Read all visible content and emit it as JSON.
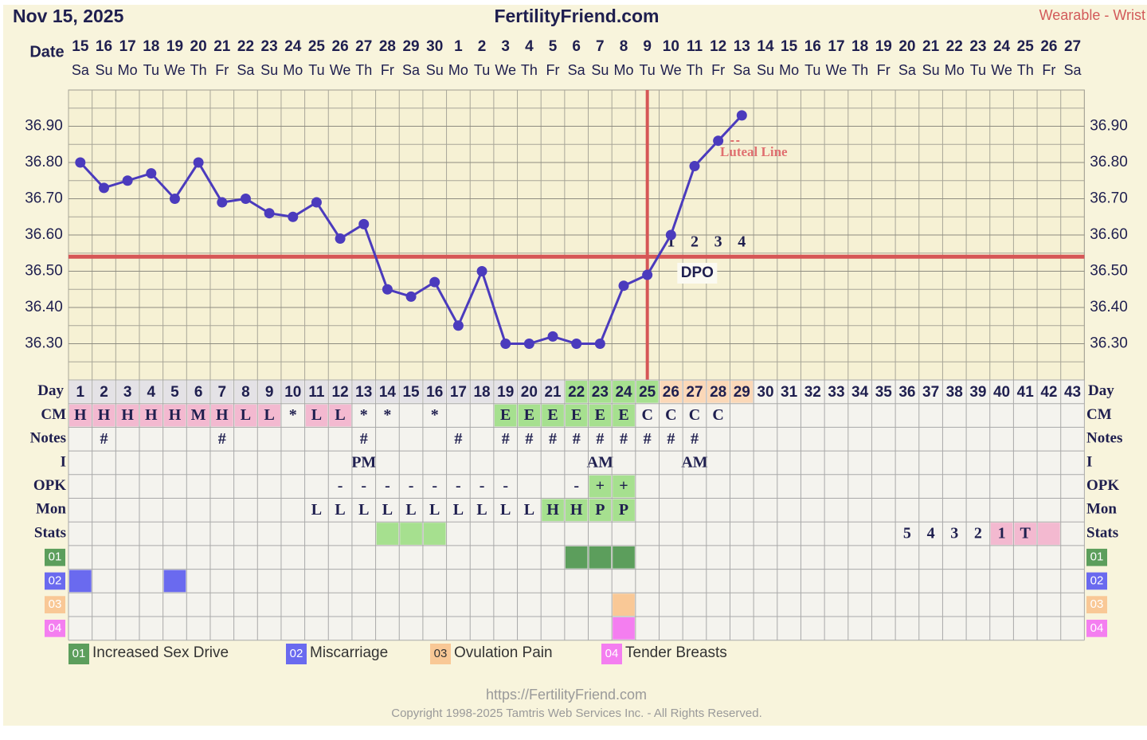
{
  "header": {
    "date": "Nov 15, 2025",
    "site": "FertilityFriend.com",
    "mode": "Wearable - Wrist"
  },
  "chart_data": {
    "type": "line",
    "x_label": "Date",
    "x": [
      15,
      16,
      17,
      18,
      19,
      20,
      21,
      22,
      23,
      24,
      25,
      26,
      27,
      28,
      29,
      30,
      1,
      2,
      3,
      4,
      5,
      6,
      7,
      8,
      9,
      10,
      11,
      12,
      13,
      14,
      15,
      16,
      17,
      18,
      19,
      20,
      21,
      22,
      23,
      24,
      25,
      26,
      27
    ],
    "weekdays": [
      "Sa",
      "Su",
      "Mo",
      "Tu",
      "We",
      "Th",
      "Fr",
      "Sa",
      "Su",
      "Mo",
      "Tu",
      "We",
      "Th",
      "Fr",
      "Sa",
      "Su",
      "Mo",
      "Tu",
      "We",
      "Th",
      "Fr",
      "Sa",
      "Su",
      "Mo",
      "Tu",
      "We",
      "Th",
      "Fr",
      "Sa",
      "Su",
      "Mo",
      "Tu",
      "We",
      "Th",
      "Fr",
      "Sa",
      "Su",
      "Mo",
      "Tu",
      "We",
      "Th",
      "Fr",
      "Sa"
    ],
    "series": [
      {
        "color": "#4b3bbd",
        "values": [
          36.8,
          36.73,
          36.75,
          36.77,
          36.7,
          36.8,
          36.69,
          36.7,
          36.66,
          36.65,
          36.69,
          36.59,
          36.63,
          36.45,
          36.43,
          36.47,
          36.35,
          36.5,
          36.3,
          36.3,
          36.32,
          36.3,
          36.3,
          36.46,
          36.49,
          36.6,
          36.79,
          36.86,
          36.93,
          null,
          null,
          null,
          null,
          null,
          null,
          null,
          null,
          null,
          null,
          null,
          null,
          null,
          null
        ]
      }
    ],
    "ylim": [
      36.2,
      37.0
    ],
    "yticks": [
      {
        "value": 36.3,
        "label": "36.30"
      },
      {
        "value": 36.4,
        "label": "36.40"
      },
      {
        "value": 36.5,
        "label": "36.50"
      },
      {
        "value": 36.6,
        "label": "36.60"
      },
      {
        "value": 36.7,
        "label": "36.70"
      },
      {
        "value": 36.8,
        "label": "36.80"
      },
      {
        "value": 36.9,
        "label": "36.90"
      }
    ],
    "grid": true,
    "coverline": 36.54,
    "coverline_color": "#d65656",
    "ovulation_day": 25,
    "dpo": [
      1,
      2,
      3,
      4
    ],
    "dpo_label": "DPO",
    "luteal_label": "Luteal Line"
  },
  "table": {
    "day_label": "Day",
    "days": [
      1,
      2,
      3,
      4,
      5,
      6,
      7,
      8,
      9,
      10,
      11,
      12,
      13,
      14,
      15,
      16,
      17,
      18,
      19,
      20,
      21,
      22,
      23,
      24,
      25,
      26,
      27,
      28,
      29,
      30,
      31,
      32,
      33,
      34,
      35,
      36,
      37,
      38,
      39,
      40,
      41,
      42,
      43
    ],
    "day_fills": [
      "#e4e2e6",
      "#e4e2e6",
      "#e4e2e6",
      "#e4e2e6",
      "#e4e2e6",
      "#e4e2e6",
      "#e4e2e6",
      "#e4e2e6",
      "#e4e2e6",
      "#e4e2e6",
      "#e4e2e6",
      "#e4e2e6",
      "#e4e2e6",
      "#e4e2e6",
      "#e4e2e6",
      "#e4e2e6",
      "#e4e2e6",
      "#e4e2e6",
      "#e4e2e6",
      "#e4e2e6",
      "#e4e2e6",
      "#a6e08f",
      "#a6e08f",
      "#a6e08f",
      "#a6e08f",
      "#fbd8b8",
      "#fbd8b8",
      "#fbd8b8",
      "#fbd8b8",
      null,
      null,
      null,
      null,
      null,
      null,
      null,
      null,
      null,
      null,
      null,
      null,
      null,
      null
    ],
    "rows": [
      {
        "label": "CM",
        "cells": [
          "H",
          "H",
          "H",
          "H",
          "H",
          "M",
          "H",
          "L",
          "L",
          "*",
          "L",
          "L",
          "*",
          "*",
          null,
          "*",
          null,
          null,
          "E",
          "E",
          "E",
          "E",
          "E",
          "E",
          "C",
          "C",
          "C",
          "C",
          null,
          null,
          null,
          null,
          null,
          null,
          null,
          null,
          null,
          null,
          null,
          null,
          null,
          null,
          null
        ],
        "fills": [
          "#f3b9d0",
          "#f3b9d0",
          "#f3b9d0",
          "#f3b9d0",
          "#f3b9d0",
          "#f3b9d0",
          "#f3b9d0",
          "#f3b9d0",
          "#f3b9d0",
          null,
          "#f3b9d0",
          "#f3b9d0",
          null,
          null,
          null,
          null,
          null,
          null,
          "#a6e08f",
          "#a6e08f",
          "#a6e08f",
          "#a6e08f",
          "#a6e08f",
          "#a6e08f",
          null,
          null,
          null,
          null,
          null,
          null,
          null,
          null,
          null,
          null,
          null,
          null,
          null,
          null,
          null,
          null,
          null,
          null,
          null
        ]
      },
      {
        "label": "Notes",
        "cells": [
          null,
          "#",
          null,
          null,
          null,
          null,
          "#",
          null,
          null,
          null,
          null,
          null,
          "#",
          null,
          null,
          null,
          "#",
          null,
          "#",
          "#",
          "#",
          "#",
          "#",
          "#",
          "#",
          "#",
          "#",
          null,
          null,
          null,
          null,
          null,
          null,
          null,
          null,
          null,
          null,
          null,
          null,
          null,
          null,
          null,
          null
        ]
      },
      {
        "label": "I",
        "cells": [
          null,
          null,
          null,
          null,
          null,
          null,
          null,
          null,
          null,
          null,
          null,
          null,
          "PM",
          null,
          null,
          null,
          null,
          null,
          null,
          null,
          null,
          null,
          "AM",
          null,
          null,
          null,
          "AM",
          null,
          null,
          null,
          null,
          null,
          null,
          null,
          null,
          null,
          null,
          null,
          null,
          null,
          null,
          null,
          null
        ]
      },
      {
        "label": "OPK",
        "cells": [
          null,
          null,
          null,
          null,
          null,
          null,
          null,
          null,
          null,
          null,
          null,
          "-",
          "-",
          "-",
          "-",
          "-",
          "-",
          "-",
          "-",
          null,
          null,
          "-",
          "+",
          "+",
          null,
          null,
          null,
          null,
          null,
          null,
          null,
          null,
          null,
          null,
          null,
          null,
          null,
          null,
          null,
          null,
          null,
          null,
          null
        ],
        "fills": [
          null,
          null,
          null,
          null,
          null,
          null,
          null,
          null,
          null,
          null,
          null,
          null,
          null,
          null,
          null,
          null,
          null,
          null,
          null,
          null,
          null,
          null,
          "#a6e08f",
          "#a6e08f",
          null,
          null,
          null,
          null,
          null,
          null,
          null,
          null,
          null,
          null,
          null,
          null,
          null,
          null,
          null,
          null,
          null,
          null,
          null
        ]
      },
      {
        "label": "Mon",
        "cells": [
          null,
          null,
          null,
          null,
          null,
          null,
          null,
          null,
          null,
          null,
          "L",
          "L",
          "L",
          "L",
          "L",
          "L",
          "L",
          "L",
          "L",
          "L",
          "H",
          "H",
          "P",
          "P",
          null,
          null,
          null,
          null,
          null,
          null,
          null,
          null,
          null,
          null,
          null,
          null,
          null,
          null,
          null,
          null,
          null,
          null,
          null
        ],
        "fills": [
          null,
          null,
          null,
          null,
          null,
          null,
          null,
          null,
          null,
          null,
          null,
          null,
          null,
          null,
          null,
          null,
          null,
          null,
          null,
          null,
          "#a6e08f",
          "#a6e08f",
          "#a6e08f",
          "#a6e08f",
          null,
          null,
          null,
          null,
          null,
          null,
          null,
          null,
          null,
          null,
          null,
          null,
          null,
          null,
          null,
          null,
          null,
          null,
          null
        ]
      },
      {
        "label": "Stats",
        "cells": [
          null,
          null,
          null,
          null,
          null,
          null,
          null,
          null,
          null,
          null,
          null,
          null,
          null,
          null,
          null,
          null,
          null,
          null,
          null,
          null,
          null,
          null,
          null,
          null,
          null,
          null,
          null,
          null,
          null,
          null,
          null,
          null,
          null,
          null,
          null,
          "5",
          "4",
          "3",
          "2",
          "1",
          "T",
          null,
          null
        ],
        "fills": [
          null,
          null,
          null,
          null,
          null,
          null,
          null,
          null,
          null,
          null,
          null,
          null,
          null,
          "#a6e08f",
          "#a6e08f",
          "#a6e08f",
          null,
          null,
          null,
          null,
          null,
          null,
          null,
          null,
          null,
          null,
          null,
          null,
          null,
          null,
          null,
          null,
          null,
          null,
          null,
          null,
          null,
          null,
          null,
          "#f3b9d0",
          "#f3b9d0",
          "#f3b9d0",
          null
        ]
      },
      {
        "label": "01",
        "badge": "#5c9e5c",
        "fills": [
          null,
          null,
          null,
          null,
          null,
          null,
          null,
          null,
          null,
          null,
          null,
          null,
          null,
          null,
          null,
          null,
          null,
          null,
          null,
          null,
          null,
          "#5c9e5c",
          "#5c9e5c",
          "#5c9e5c",
          null,
          null,
          null,
          null,
          null,
          null,
          null,
          null,
          null,
          null,
          null,
          null,
          null,
          null,
          null,
          null,
          null,
          null,
          null
        ]
      },
      {
        "label": "02",
        "badge": "#6a6aef",
        "fills": [
          "#6a6aef",
          null,
          null,
          null,
          "#6a6aef",
          null,
          null,
          null,
          null,
          null,
          null,
          null,
          null,
          null,
          null,
          null,
          null,
          null,
          null,
          null,
          null,
          null,
          null,
          null,
          null,
          null,
          null,
          null,
          null,
          null,
          null,
          null,
          null,
          null,
          null,
          null,
          null,
          null,
          null,
          null,
          null,
          null,
          null
        ]
      },
      {
        "label": "03",
        "badge": "#f9c896",
        "fills": [
          null,
          null,
          null,
          null,
          null,
          null,
          null,
          null,
          null,
          null,
          null,
          null,
          null,
          null,
          null,
          null,
          null,
          null,
          null,
          null,
          null,
          null,
          null,
          "#f9c896",
          null,
          null,
          null,
          null,
          null,
          null,
          null,
          null,
          null,
          null,
          null,
          null,
          null,
          null,
          null,
          null,
          null,
          null,
          null
        ]
      },
      {
        "label": "04",
        "badge": "#f47ef0",
        "fills": [
          null,
          null,
          null,
          null,
          null,
          null,
          null,
          null,
          null,
          null,
          null,
          null,
          null,
          null,
          null,
          null,
          null,
          null,
          null,
          null,
          null,
          null,
          null,
          "#f47ef0",
          null,
          null,
          null,
          null,
          null,
          null,
          null,
          null,
          null,
          null,
          null,
          null,
          null,
          null,
          null,
          null,
          null,
          null,
          null
        ]
      }
    ]
  },
  "legend": [
    {
      "code": "01",
      "label": "Increased Sex Drive",
      "color": "#5c9e5c"
    },
    {
      "code": "02",
      "label": "Miscarriage",
      "color": "#6a6aef"
    },
    {
      "code": "03",
      "label": "Ovulation Pain",
      "color": "#f9c896"
    },
    {
      "code": "04",
      "label": "Tender Breasts",
      "color": "#f47ef0"
    }
  ],
  "footer": {
    "url": "https://FertilityFriend.com",
    "copyright": "Copyright 1998-2025 Tamtris Web Services Inc. - All Rights Reserved."
  }
}
